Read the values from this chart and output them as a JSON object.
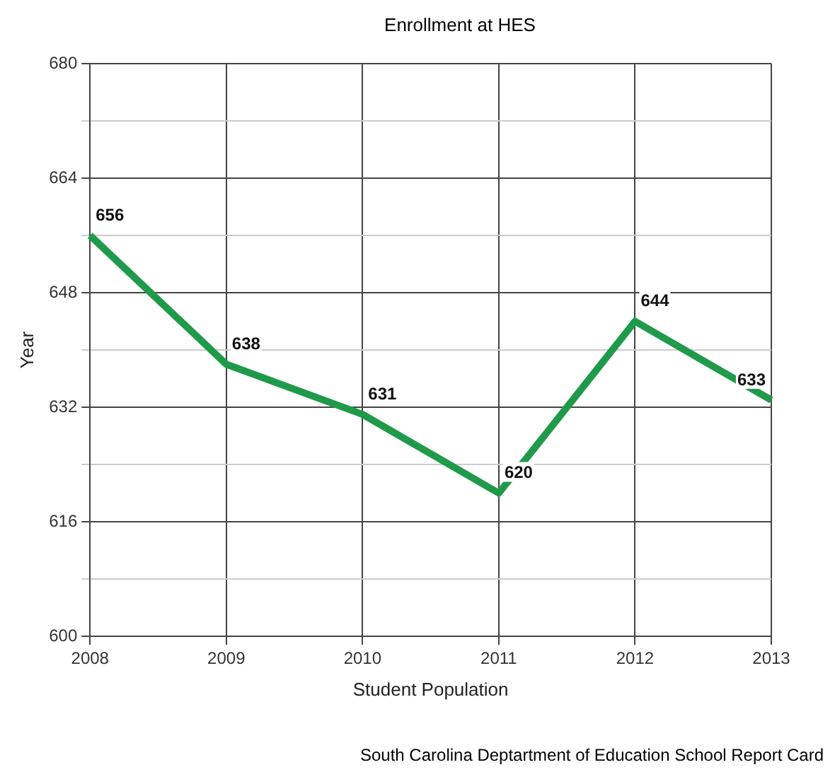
{
  "chart_data": {
    "type": "line",
    "title": "Enrollment at HES",
    "xlabel": "Student Population",
    "ylabel": "Year",
    "annotations": [
      "South Carolina Deptartment of Education School Report Card"
    ],
    "categories": [
      "2008",
      "2009",
      "2010",
      "2011",
      "2012",
      "2013"
    ],
    "series": [
      {
        "color": "#1f9a4a",
        "values": [
          656,
          638,
          631,
          620,
          644,
          633
        ]
      }
    ],
    "ylim": [
      600,
      680
    ],
    "yticks": [
      600,
      {
        "value": 608,
        "label": null
      },
      616,
      {
        "value": 624,
        "label": null
      },
      632,
      {
        "value": 640,
        "label": null
      },
      648,
      {
        "value": 656,
        "label": null
      },
      664,
      {
        "value": 672,
        "label": null
      },
      680
    ],
    "grid": true,
    "legend": false,
    "marker": "none",
    "line_style": "solid",
    "data_labels": true
  }
}
